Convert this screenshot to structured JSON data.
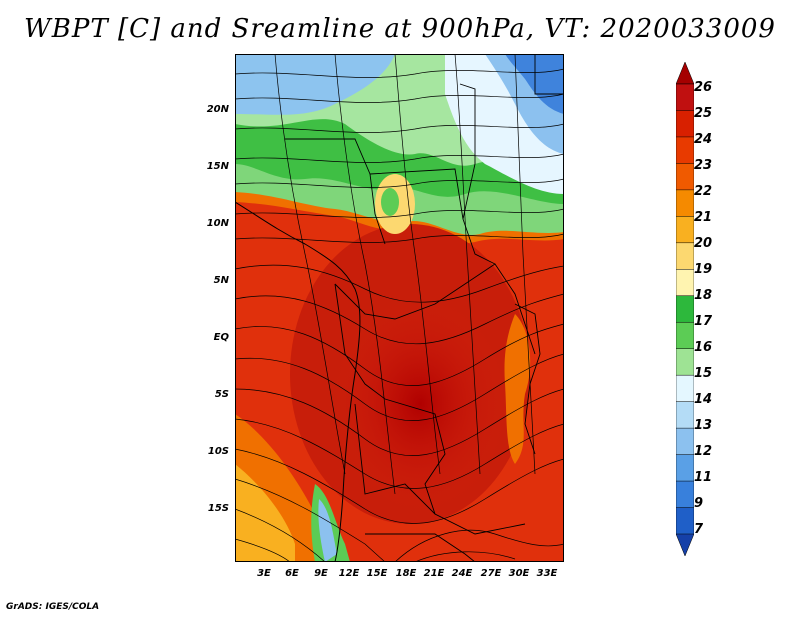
{
  "title": "WBPT [C] and Sreamline at 900hPa, VT: 2020033009",
  "footer": "GrADS: IGES/COLA",
  "map": {
    "lat_labels": [
      "20N",
      "15N",
      "10N",
      "5N",
      "EQ",
      "5S",
      "10S",
      "15S"
    ],
    "lon_labels": [
      "3E",
      "6E",
      "9E",
      "12E",
      "15E",
      "18E",
      "21E",
      "24E",
      "27E",
      "30E",
      "33E"
    ],
    "field": "wet-bulb potential temperature with streamlines"
  },
  "colorbar": {
    "labels": [
      "26",
      "25",
      "24",
      "23",
      "22",
      "21",
      "20",
      "19",
      "18",
      "17",
      "16",
      "15",
      "14",
      "13",
      "12",
      "11",
      "9",
      "7"
    ],
    "colors": [
      "#a50000",
      "#c01010",
      "#d82000",
      "#e83a00",
      "#f05a00",
      "#f58a00",
      "#f9b020",
      "#fcd870",
      "#fff4b0",
      "#2db83c",
      "#5ccc55",
      "#9ee394",
      "#e4f7ff",
      "#b4dcf6",
      "#8cc1ef",
      "#5aa0e6",
      "#3880dc",
      "#1f5fc8",
      "#1540a8"
    ]
  }
}
